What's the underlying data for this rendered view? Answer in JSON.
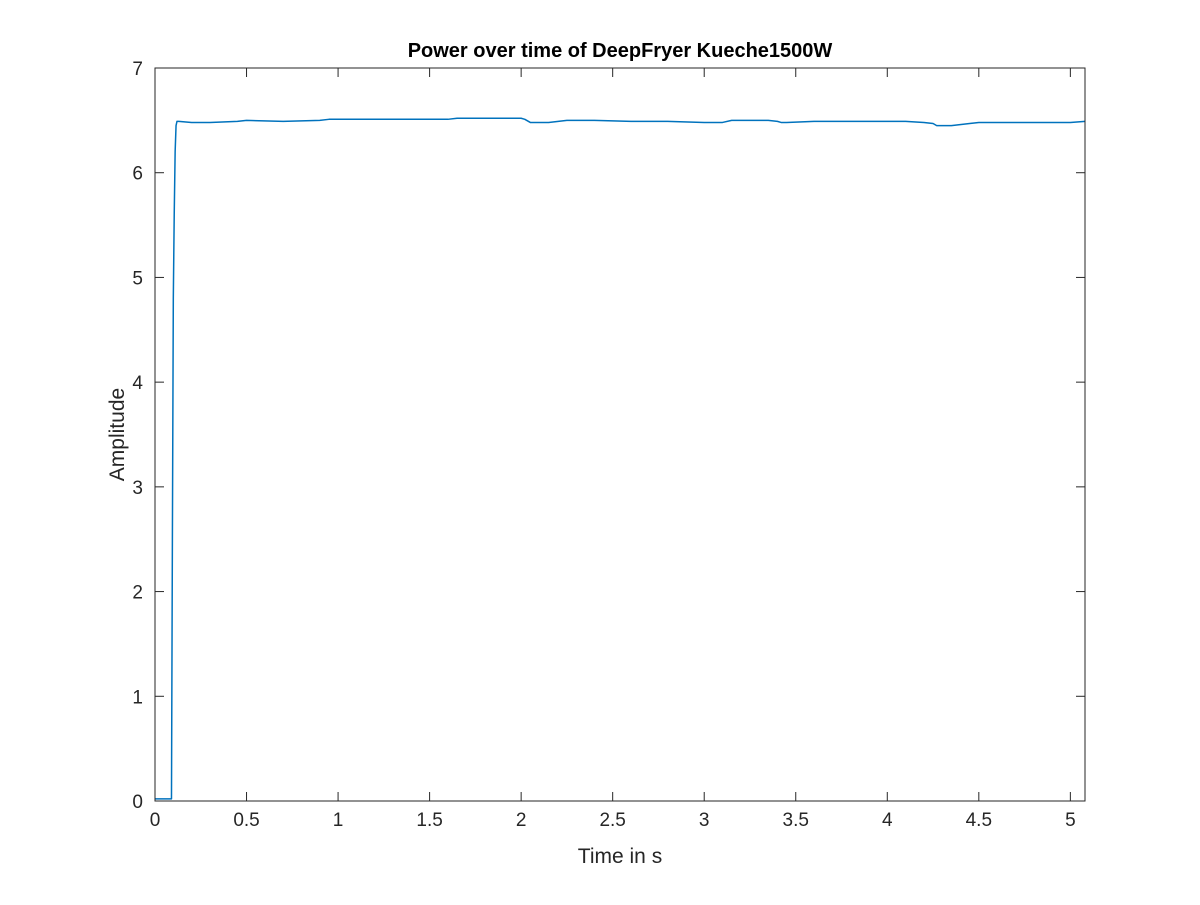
{
  "chart_data": {
    "type": "line",
    "title": "Power over time of DeepFryer Kueche1500W",
    "xlabel": "Time in s",
    "ylabel": "Amplitude",
    "xlim": [
      0,
      5.08
    ],
    "ylim": [
      0,
      7
    ],
    "grid": false,
    "legend": "none",
    "box": true,
    "x_ticks": [
      0,
      0.5,
      1,
      1.5,
      2,
      2.5,
      3,
      3.5,
      4,
      4.5,
      5
    ],
    "x_tick_labels": [
      "0",
      "0.5",
      "1",
      "1.5",
      "2",
      "2.5",
      "3",
      "3.5",
      "4",
      "4.5",
      "5"
    ],
    "y_ticks": [
      0,
      1,
      2,
      3,
      4,
      5,
      6,
      7
    ],
    "y_tick_labels": [
      "0",
      "1",
      "2",
      "3",
      "4",
      "5",
      "6",
      "7"
    ],
    "series": [
      {
        "color": "#0072BD",
        "x": [
          0,
          0.09,
          0.095,
          0.1,
          0.105,
          0.11,
          0.115,
          0.12,
          0.13,
          0.2,
          0.3,
          0.45,
          0.5,
          0.7,
          0.9,
          0.95,
          1.0,
          1.2,
          1.4,
          1.6,
          1.65,
          1.7,
          1.9,
          1.98,
          2.0,
          2.02,
          2.05,
          2.15,
          2.25,
          2.4,
          2.6,
          2.8,
          3.0,
          3.1,
          3.15,
          3.35,
          3.4,
          3.42,
          3.45,
          3.6,
          3.8,
          4.0,
          4.1,
          4.2,
          4.25,
          4.27,
          4.35,
          4.45,
          4.5,
          4.7,
          4.9,
          5.0,
          5.08
        ],
        "y": [
          0.02,
          0.02,
          2.5,
          4.8,
          5.6,
          6.2,
          6.45,
          6.49,
          6.49,
          6.48,
          6.48,
          6.49,
          6.5,
          6.49,
          6.5,
          6.51,
          6.51,
          6.51,
          6.51,
          6.51,
          6.52,
          6.52,
          6.52,
          6.52,
          6.52,
          6.51,
          6.48,
          6.48,
          6.5,
          6.5,
          6.49,
          6.49,
          6.48,
          6.48,
          6.5,
          6.5,
          6.49,
          6.48,
          6.48,
          6.49,
          6.49,
          6.49,
          6.49,
          6.48,
          6.47,
          6.45,
          6.45,
          6.47,
          6.48,
          6.48,
          6.48,
          6.48,
          6.49
        ]
      }
    ]
  }
}
